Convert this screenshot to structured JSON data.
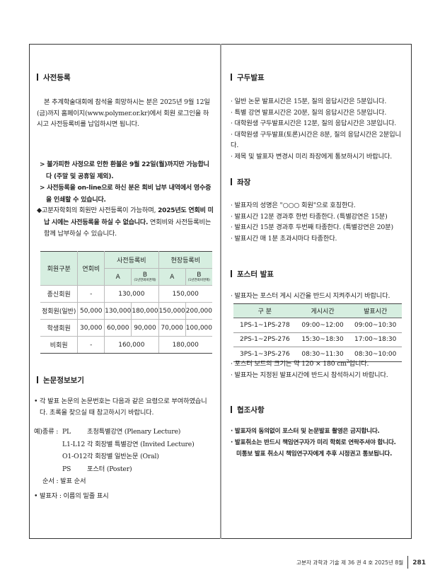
{
  "registration": {
    "title": "사전등록",
    "intro": "본 추계학술대회에 참석을 희망하시는 분은 2025년 9월 12일(금)까지 홈페이지(www.polymer.or.kr)에서 회원 로그인을 하시고 사전등록비를 납입하시면 됩니다.",
    "notes": [
      "> 불가피한 사정으로 인한 환불은 9월 22일(월)까지만 가능합니다 (주말 및 공휴일 제외).",
      "> 사전등록을 on-line으로 하신 분은 회비 납부 내역에서 영수증을 인쇄할 수 있습니다."
    ],
    "member_note_plain1": "◆고분자학회의 회원만 사전등록이 가능하며, ",
    "member_note_bold": "2025년도 연회비 미납 시에는 사전등록을 하실 수 없습니다.",
    "member_note_plain2": " 연회비와 사전등록비는 함께 납부하실 수 있습니다.",
    "fee_table": {
      "headers": {
        "member_type": "회원구분",
        "annual_fee": "연회비",
        "pre": "사전등록비",
        "onsite": "현장등록비",
        "a": "A",
        "b": "B",
        "b_note": "(1년연회비면제)"
      },
      "rows": [
        {
          "type": "종신회원",
          "annual": "-",
          "pre_merged": "130,000",
          "onsite_merged": "150,000"
        },
        {
          "type": "정회원(일반)",
          "annual": "50,000",
          "pre_a": "130,000",
          "pre_b": "180,000",
          "onsite_a": "150,000",
          "onsite_b": "200,000"
        },
        {
          "type": "학생회원",
          "annual": "30,000",
          "pre_a": "60,000",
          "pre_b": "90,000",
          "onsite_a": "70,000",
          "onsite_b": "100,000"
        },
        {
          "type": "비회원",
          "annual": "-",
          "pre_merged": "160,000",
          "onsite_merged": "180,000"
        }
      ]
    }
  },
  "paper_info": {
    "title": "논문정보보기",
    "intro": "• 각 발표 논문의 논문번호는 다음과 같은 요령으로 부여하였습니다. 초록을 찾으실 때 참고하시기 바랍니다.",
    "example_label": "예)종류 : ",
    "types": [
      {
        "code": "PL",
        "desc": "초청특별강연 (Plenary Lecture)"
      },
      {
        "code": "L1-L12",
        "desc": "각 회장별 특별강연 (Invited Lecture)"
      },
      {
        "code": "O1-O12",
        "desc": "각 회장별 일반논문 (Oral)"
      },
      {
        "code": "PS",
        "desc": "포스터 (Poster)"
      }
    ],
    "order": "순서 : 발표 순서",
    "presenter": "• 발표자 : 이름의 밑줄 표시"
  },
  "oral": {
    "title": "구두발표",
    "items": [
      "· 일반 논문 발표시간은 15분, 질의 응답시간은 5분입니다.",
      "· 특별 강연 발표시간은 20분, 질의 응답시간은 5분입니다.",
      "· 대학원생 구두발표시간은 12분, 질의 응답시간은 3분입니다.",
      "· 대학원생 구두발표(토론)시간은 8분, 질의 응답시간은 2분입니다.",
      "· 제목 및 발표자 변경시 미리 좌장에게 통보하시기 바랍니다."
    ]
  },
  "chair": {
    "title": "좌장",
    "items": [
      "· 발표자의 성명은 \"○○○ 회원\"으로 호칭한다.",
      "· 발표시간 12분 경과후 한번 타종한다. (특별강연은 15분)",
      "· 발표시간 15분 경과후 두번째 타종한다. (특별강연은 20분)",
      "· 발표시간 매 1분 초과시마다 타종한다."
    ]
  },
  "poster": {
    "title": "포스터 발표",
    "intro": "· 발표자는 포스터 게시 시간을 반드시 지켜주시기 바랍니다.",
    "table": {
      "headers": [
        "구 분",
        "게시시간",
        "발표시간"
      ],
      "rows": [
        [
          "1PS-1~1PS-278",
          "09:00~12:00",
          "09:00~10:30"
        ],
        [
          "2PS-1~2PS-276",
          "15:30~18:30",
          "17:00~18:30"
        ],
        [
          "3PS-1~3PS-276",
          "08:30~11:30",
          "08:30~10:00"
        ]
      ]
    },
    "board_size_pre": "· 포스터 보드의 크기는 약 120 × 180 cm",
    "board_size_sup": "2",
    "board_size_post": "입니다.",
    "attend": "· 발표자는 지정된 발표시간에 반드시 참석하시기 바랍니다."
  },
  "cooperation": {
    "title": "협조사항",
    "items": [
      "· 발표자의 동의없이 포스터 및 논문발표 촬영은 금지합니다.",
      "· 발표취소는 반드시 책임연구자가 미리 학회로 연락주셔야 합니다.",
      "미통보 발표 취소시 책임연구자에게 추후 시정권고 통보됩니다."
    ]
  },
  "footer": {
    "journal": "고분자 과학과 기술 제 36 권 4 호 2025년 8월",
    "page": "281"
  },
  "colors": {
    "table_header": "#d6eee0",
    "border": "#333333"
  }
}
